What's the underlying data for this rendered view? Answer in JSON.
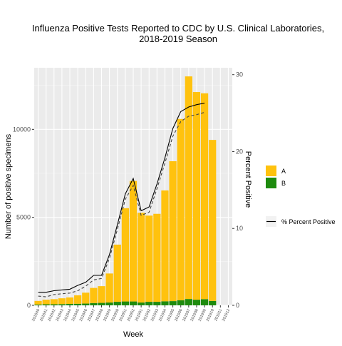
{
  "chart_data": {
    "type": "bar",
    "title_lines": [
      "Influenza Positive Tests Reported to CDC by U.S. Clinical Laboratories,",
      "2018-2019 Season"
    ],
    "xlabel": "Week",
    "ylabel": "Number of positive specimens",
    "y2label": "Percent Positive",
    "ylim": [
      0,
      13500
    ],
    "y2lim": [
      0,
      30.9
    ],
    "yticks": [
      0,
      5000,
      10000
    ],
    "y2ticks": [
      0,
      10,
      20,
      30
    ],
    "grid": true,
    "legend_position": "right",
    "categories": [
      "201840",
      "201841",
      "201842",
      "201843",
      "201844",
      "201845",
      "201846",
      "201847",
      "201848",
      "201849",
      "201850",
      "201851",
      "201852",
      "201901",
      "201902",
      "201903",
      "201904",
      "201905",
      "201906",
      "201907",
      "201908",
      "201909",
      "201910",
      "201911",
      "201912"
    ],
    "series": [
      {
        "name": "A",
        "color": "#FFC20E",
        "values": [
          200,
          260,
          290,
          330,
          370,
          480,
          620,
          860,
          950,
          1650,
          3250,
          5300,
          6850,
          5100,
          4900,
          5000,
          6300,
          7950,
          10300,
          12650,
          11800,
          11700,
          9150,
          0,
          0
        ]
      },
      {
        "name": "B",
        "color": "#1E8B0E",
        "values": [
          50,
          60,
          60,
          70,
          80,
          90,
          100,
          130,
          140,
          160,
          200,
          220,
          220,
          160,
          200,
          200,
          230,
          240,
          290,
          360,
          320,
          350,
          250,
          0,
          0
        ]
      }
    ],
    "line_series": [
      {
        "name": "% Percent Positive",
        "color": "#000000",
        "style": "solid",
        "values": [
          1.7,
          1.7,
          1.9,
          2.0,
          2.1,
          2.6,
          3.0,
          3.9,
          3.9,
          6.6,
          10.5,
          14.5,
          16.5,
          12.3,
          12.8,
          15.8,
          19.2,
          23.0,
          25.2,
          25.8,
          26.1,
          26.3,
          null,
          null,
          null
        ]
      },
      {
        "name": "",
        "color": "#444444",
        "style": "dashed",
        "values": [
          1.2,
          1.1,
          1.4,
          1.5,
          1.6,
          1.9,
          2.5,
          3.3,
          3.5,
          6.1,
          9.9,
          13.8,
          15.6,
          11.7,
          12.1,
          15.2,
          18.5,
          22.0,
          23.9,
          24.6,
          24.8,
          25.1,
          null,
          null,
          null
        ]
      }
    ],
    "legend": [
      {
        "label": "A",
        "type": "bar",
        "color": "#FFC20E"
      },
      {
        "label": "B",
        "type": "bar",
        "color": "#1E8B0E"
      },
      {
        "label": "% Percent Positive",
        "type": "line",
        "color": "#000000"
      }
    ]
  }
}
